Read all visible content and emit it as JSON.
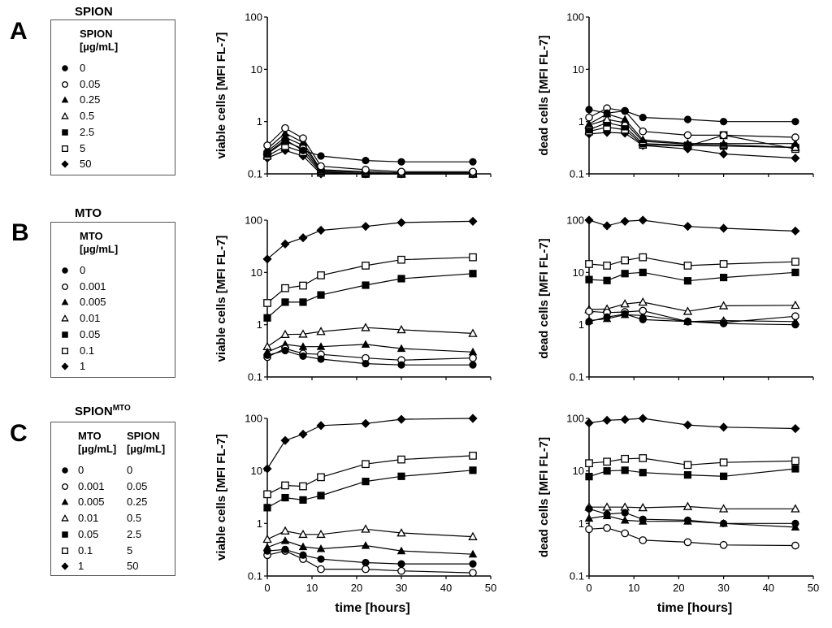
{
  "panels": [
    {
      "letter": "A",
      "legend_title": "SPION",
      "legend_title_sup": "",
      "legend_headers": [
        [
          "SPION",
          "[µg/mL]"
        ]
      ],
      "legend_rows": [
        {
          "symbol": "filled-circle",
          "values": [
            "0"
          ]
        },
        {
          "symbol": "open-circle",
          "values": [
            "0.05"
          ]
        },
        {
          "symbol": "filled-triangle",
          "values": [
            "0.25"
          ]
        },
        {
          "symbol": "open-triangle",
          "values": [
            "0.5"
          ]
        },
        {
          "symbol": "filled-square",
          "values": [
            "2.5"
          ]
        },
        {
          "symbol": "open-square",
          "values": [
            "5"
          ]
        },
        {
          "symbol": "filled-diamond",
          "values": [
            "50"
          ]
        }
      ]
    },
    {
      "letter": "B",
      "legend_title": "MTO",
      "legend_title_sup": "",
      "legend_headers": [
        [
          "MTO",
          "[µg/mL]"
        ]
      ],
      "legend_rows": [
        {
          "symbol": "filled-circle",
          "values": [
            "0"
          ]
        },
        {
          "symbol": "open-circle",
          "values": [
            "0.001"
          ]
        },
        {
          "symbol": "filled-triangle",
          "values": [
            "0.005"
          ]
        },
        {
          "symbol": "open-triangle",
          "values": [
            "0.01"
          ]
        },
        {
          "symbol": "filled-square",
          "values": [
            "0.05"
          ]
        },
        {
          "symbol": "open-square",
          "values": [
            "0.1"
          ]
        },
        {
          "symbol": "filled-diamond",
          "values": [
            "1"
          ]
        }
      ]
    },
    {
      "letter": "C",
      "legend_title": "SPION",
      "legend_title_sup": "MTO",
      "legend_headers": [
        [
          "MTO",
          "[µg/mL]"
        ],
        [
          "SPION",
          "[µg/mL]"
        ]
      ],
      "legend_rows": [
        {
          "symbol": "filled-circle",
          "values": [
            "0",
            "0"
          ]
        },
        {
          "symbol": "open-circle",
          "values": [
            "0.001",
            "0.05"
          ]
        },
        {
          "symbol": "filled-triangle",
          "values": [
            "0.005",
            "0.25"
          ]
        },
        {
          "symbol": "open-triangle",
          "values": [
            "0.01",
            "0.5"
          ]
        },
        {
          "symbol": "filled-square",
          "values": [
            "0.05",
            "2.5"
          ]
        },
        {
          "symbol": "open-square",
          "values": [
            "0.1",
            "5"
          ]
        },
        {
          "symbol": "filled-diamond",
          "values": [
            "1",
            "50"
          ]
        }
      ]
    }
  ],
  "chart_data": [
    {
      "id": "A-viable",
      "panel": "A",
      "type": "line",
      "title": "",
      "xlabel": "",
      "ylabel": "viable cells [MFI FL-7]",
      "yscale": "log",
      "ylim": [
        0.1,
        100
      ],
      "xlim": [
        0,
        50
      ],
      "yticks": [
        "0.1",
        "1",
        "10",
        "100"
      ],
      "xticks": [],
      "x": [
        0,
        4,
        8,
        12,
        22,
        30,
        46
      ],
      "series": [
        {
          "name": "0",
          "symbol": "filled-circle",
          "values": [
            0.25,
            0.45,
            0.28,
            0.22,
            0.18,
            0.17,
            0.17
          ]
        },
        {
          "name": "0.05",
          "symbol": "open-circle",
          "values": [
            0.35,
            0.75,
            0.48,
            0.14,
            0.12,
            0.11,
            0.11
          ]
        },
        {
          "name": "0.25",
          "symbol": "filled-triangle",
          "values": [
            0.3,
            0.6,
            0.4,
            0.12,
            0.11,
            0.105,
            0.105
          ]
        },
        {
          "name": "0.5",
          "symbol": "open-triangle",
          "values": [
            0.27,
            0.5,
            0.35,
            0.115,
            0.105,
            0.1,
            0.1
          ]
        },
        {
          "name": "2.5",
          "symbol": "filled-square",
          "values": [
            0.24,
            0.42,
            0.3,
            0.11,
            0.1,
            0.1,
            0.1
          ]
        },
        {
          "name": "5",
          "symbol": "open-square",
          "values": [
            0.22,
            0.34,
            0.26,
            0.105,
            0.1,
            0.1,
            0.1
          ]
        },
        {
          "name": "50",
          "symbol": "filled-diamond",
          "values": [
            0.2,
            0.28,
            0.22,
            0.1,
            0.1,
            0.095,
            0.1
          ]
        }
      ]
    },
    {
      "id": "A-dead",
      "panel": "A",
      "type": "line",
      "title": "",
      "xlabel": "",
      "ylabel": "dead cells [MFI FL-7]",
      "yscale": "log",
      "ylim": [
        0.1,
        100
      ],
      "xlim": [
        0,
        50
      ],
      "yticks": [
        "0.1",
        "1",
        "10",
        "100"
      ],
      "xticks": [],
      "x": [
        0,
        4,
        8,
        12,
        22,
        30,
        46
      ],
      "series": [
        {
          "name": "0",
          "symbol": "filled-circle",
          "values": [
            1.7,
            1.45,
            1.6,
            1.2,
            1.1,
            1.0,
            1.0
          ]
        },
        {
          "name": "0.05",
          "symbol": "open-circle",
          "values": [
            1.2,
            1.8,
            1.6,
            0.65,
            0.55,
            0.55,
            0.5
          ]
        },
        {
          "name": "0.25",
          "symbol": "filled-triangle",
          "values": [
            0.9,
            1.4,
            1.1,
            0.45,
            0.38,
            0.38,
            0.38
          ]
        },
        {
          "name": "0.5",
          "symbol": "open-triangle",
          "values": [
            0.85,
            1.1,
            0.95,
            0.42,
            0.37,
            0.36,
            0.32
          ]
        },
        {
          "name": "2.5",
          "symbol": "filled-square",
          "values": [
            0.7,
            0.95,
            0.8,
            0.38,
            0.35,
            0.34,
            0.32
          ]
        },
        {
          "name": "5",
          "symbol": "open-square",
          "values": [
            0.65,
            0.78,
            0.7,
            0.36,
            0.34,
            0.55,
            0.3
          ]
        },
        {
          "name": "50",
          "symbol": "filled-diamond",
          "values": [
            0.58,
            0.62,
            0.6,
            0.35,
            0.3,
            0.24,
            0.2
          ]
        }
      ]
    },
    {
      "id": "B-viable",
      "panel": "B",
      "type": "line",
      "title": "",
      "xlabel": "",
      "ylabel": "viable cells [MFI FL-7]",
      "yscale": "log",
      "ylim": [
        0.1,
        100
      ],
      "xlim": [
        0,
        50
      ],
      "yticks": [
        "0.1",
        "1",
        "10",
        "100"
      ],
      "xticks": [],
      "x": [
        0,
        4,
        8,
        12,
        22,
        30,
        46
      ],
      "series": [
        {
          "name": "0",
          "symbol": "filled-circle",
          "values": [
            0.26,
            0.32,
            0.25,
            0.22,
            0.18,
            0.17,
            0.17
          ]
        },
        {
          "name": "0.001",
          "symbol": "open-circle",
          "values": [
            0.24,
            0.35,
            0.28,
            0.27,
            0.23,
            0.21,
            0.23
          ]
        },
        {
          "name": "0.005",
          "symbol": "filled-triangle",
          "values": [
            0.3,
            0.42,
            0.38,
            0.38,
            0.42,
            0.35,
            0.3
          ]
        },
        {
          "name": "0.01",
          "symbol": "open-triangle",
          "values": [
            0.38,
            0.65,
            0.66,
            0.74,
            0.88,
            0.8,
            0.68
          ]
        },
        {
          "name": "0.05",
          "symbol": "filled-square",
          "values": [
            1.35,
            2.7,
            2.7,
            3.7,
            5.7,
            7.6,
            9.5
          ]
        },
        {
          "name": "0.1",
          "symbol": "open-square",
          "values": [
            2.6,
            5.0,
            5.6,
            8.8,
            13.5,
            17.5,
            19.5
          ]
        },
        {
          "name": "1",
          "symbol": "filled-diamond",
          "values": [
            18,
            35,
            46,
            64,
            76,
            90,
            95
          ]
        }
      ]
    },
    {
      "id": "B-dead",
      "panel": "B",
      "type": "line",
      "title": "",
      "xlabel": "",
      "ylabel": "dead cells [MFI FL-7]",
      "yscale": "log",
      "ylim": [
        0.1,
        100
      ],
      "xlim": [
        0,
        50
      ],
      "yticks": [
        "0.1",
        "1",
        "10",
        "100"
      ],
      "xticks": [],
      "x": [
        0,
        4,
        8,
        12,
        22,
        30,
        46
      ],
      "series": [
        {
          "name": "0",
          "symbol": "filled-circle",
          "values": [
            1.15,
            1.4,
            1.6,
            1.25,
            1.15,
            1.05,
            1.0
          ]
        },
        {
          "name": "0.001",
          "symbol": "open-circle",
          "values": [
            1.8,
            1.7,
            1.75,
            1.85,
            1.15,
            1.1,
            1.45
          ]
        },
        {
          "name": "0.005",
          "symbol": "filled-triangle",
          "values": [
            1.2,
            1.3,
            1.55,
            1.5,
            1.15,
            1.2,
            1.15
          ]
        },
        {
          "name": "0.01",
          "symbol": "open-triangle",
          "values": [
            1.95,
            2.0,
            2.5,
            2.7,
            1.8,
            2.3,
            2.35
          ]
        },
        {
          "name": "0.05",
          "symbol": "filled-square",
          "values": [
            7.3,
            7.0,
            9.5,
            10,
            6.9,
            8.0,
            10
          ]
        },
        {
          "name": "0.1",
          "symbol": "open-square",
          "values": [
            14.5,
            13.5,
            17,
            19.5,
            13.5,
            14.5,
            16
          ]
        },
        {
          "name": "1",
          "symbol": "filled-diamond",
          "values": [
            100,
            78,
            95,
            105,
            76,
            70,
            62
          ]
        }
      ]
    },
    {
      "id": "C-viable",
      "panel": "C",
      "type": "line",
      "title": "",
      "xlabel": "time [hours]",
      "ylabel": "viable cells [MFI FL-7]",
      "yscale": "log",
      "ylim": [
        0.1,
        100
      ],
      "xlim": [
        0,
        50
      ],
      "yticks": [
        "0.1",
        "1",
        "10",
        "100"
      ],
      "xticks": [
        "0",
        "10",
        "20",
        "30",
        "40",
        "50"
      ],
      "x": [
        0,
        4,
        8,
        12,
        22,
        30,
        46
      ],
      "series": [
        {
          "name": "0 / 0",
          "symbol": "filled-circle",
          "values": [
            0.3,
            0.32,
            0.25,
            0.21,
            0.18,
            0.17,
            0.17
          ]
        },
        {
          "name": "0.001 / 0.05",
          "symbol": "open-circle",
          "values": [
            0.25,
            0.3,
            0.21,
            0.135,
            0.135,
            0.125,
            0.115
          ]
        },
        {
          "name": "0.005 / 0.25",
          "symbol": "filled-triangle",
          "values": [
            0.35,
            0.47,
            0.36,
            0.33,
            0.38,
            0.3,
            0.26
          ]
        },
        {
          "name": "0.01 / 0.5",
          "symbol": "open-triangle",
          "values": [
            0.5,
            0.72,
            0.62,
            0.62,
            0.78,
            0.66,
            0.56
          ]
        },
        {
          "name": "0.05 / 2.5",
          "symbol": "filled-square",
          "values": [
            2.0,
            3.1,
            2.8,
            3.4,
            6.3,
            7.9,
            10.3
          ]
        },
        {
          "name": "0.1 / 5",
          "symbol": "open-square",
          "values": [
            3.6,
            5.3,
            5.1,
            7.6,
            13.5,
            16.5,
            19.5
          ]
        },
        {
          "name": "1 / 50",
          "symbol": "filled-diamond",
          "values": [
            11,
            38,
            50,
            73,
            80,
            96,
            100
          ]
        }
      ]
    },
    {
      "id": "C-dead",
      "panel": "C",
      "type": "line",
      "title": "",
      "xlabel": "time [hours]",
      "ylabel": "dead cells [MFI FL-7]",
      "yscale": "log",
      "ylim": [
        0.1,
        100
      ],
      "xlim": [
        0,
        50
      ],
      "yticks": [
        "0.1",
        "1",
        "10",
        "100"
      ],
      "xticks": [
        "0",
        "10",
        "20",
        "30",
        "40",
        "50"
      ],
      "x": [
        0,
        4,
        8,
        12,
        22,
        30,
        46
      ],
      "series": [
        {
          "name": "0 / 0",
          "symbol": "filled-circle",
          "values": [
            1.9,
            1.5,
            1.6,
            1.2,
            1.15,
            1.0,
            1.0
          ]
        },
        {
          "name": "0.001 / 0.05",
          "symbol": "open-circle",
          "values": [
            0.78,
            0.82,
            0.65,
            0.48,
            0.44,
            0.39,
            0.38
          ]
        },
        {
          "name": "0.005 / 0.25",
          "symbol": "filled-triangle",
          "values": [
            1.25,
            1.4,
            1.15,
            1.1,
            1.1,
            1.0,
            0.85
          ]
        },
        {
          "name": "0.01 / 0.5",
          "symbol": "open-triangle",
          "values": [
            2.05,
            2.05,
            2.05,
            2.0,
            2.1,
            1.9,
            1.9
          ]
        },
        {
          "name": "0.05 / 2.5",
          "symbol": "filled-square",
          "values": [
            7.8,
            10,
            10.3,
            9.3,
            8.4,
            7.9,
            11
          ]
        },
        {
          "name": "0.1 / 5",
          "symbol": "open-square",
          "values": [
            14,
            15,
            17,
            17.5,
            13,
            14.5,
            15.5
          ]
        },
        {
          "name": "1 / 50",
          "symbol": "filled-diamond",
          "values": [
            82,
            92,
            95,
            100,
            75,
            68,
            64
          ]
        }
      ]
    }
  ]
}
